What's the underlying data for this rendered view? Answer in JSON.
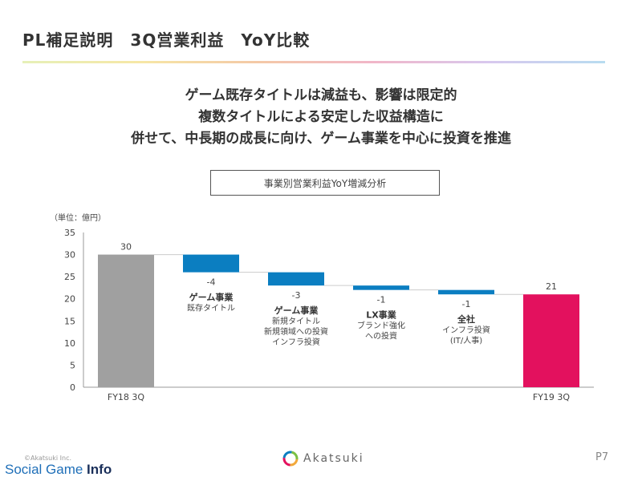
{
  "slide": {
    "title": "PL補足説明　3Q営業利益　YoY比較",
    "headline": [
      "ゲーム既存タイトルは減益も、影響は限定的",
      "複数タイトルによる安定した収益構造に",
      "併せて、中長期の成長に向け、ゲーム事業を中心に投資を推進"
    ],
    "box_label": "事業別営業利益YoY増減分析",
    "unit": "（単位：億円）"
  },
  "footer": {
    "copyright": "©Akatsuki Inc.",
    "logo_text": "Akatsuki",
    "page": "P7",
    "watermark_a": "Social Game ",
    "watermark_b": "Info"
  },
  "chart_data": {
    "type": "bar",
    "subtype": "waterfall",
    "ylim": [
      0,
      35
    ],
    "yticks": [
      0,
      5,
      10,
      15,
      20,
      25,
      30,
      35
    ],
    "grid": false,
    "steps": [
      {
        "kind": "total",
        "value": 30,
        "label": "30",
        "category": "FY18 3Q",
        "color": "#a0a0a0"
      },
      {
        "kind": "delta",
        "value": -4,
        "label": "-4",
        "title": "ゲーム事業",
        "desc": [
          "既存タイトル"
        ],
        "color": "#0b7ec1"
      },
      {
        "kind": "delta",
        "value": -3,
        "label": "-3",
        "title": "ゲーム事業",
        "desc": [
          "新規タイトル",
          "新規領域への投資",
          "インフラ投資"
        ],
        "color": "#0b7ec1"
      },
      {
        "kind": "delta",
        "value": -1,
        "label": "-1",
        "title": "LX事業",
        "desc": [
          "ブランド強化",
          "への投資"
        ],
        "color": "#0b7ec1"
      },
      {
        "kind": "delta",
        "value": -1,
        "label": "-1",
        "title": "全社",
        "desc": [
          "インフラ投資",
          "(IT/人事)"
        ],
        "color": "#0b7ec1"
      },
      {
        "kind": "total",
        "value": 21,
        "label": "21",
        "category": "FY19 3Q",
        "color": "#e3115e"
      }
    ]
  }
}
